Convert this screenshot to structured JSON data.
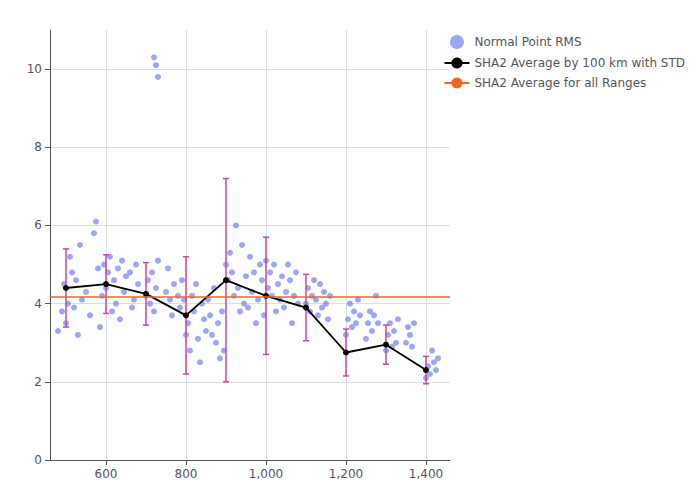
{
  "chart_data": {
    "type": "scatter",
    "legend": "right",
    "grid": true,
    "xlim": [
      460,
      1460
    ],
    "xticks": [
      600,
      800,
      1000,
      1200,
      1400
    ],
    "ylim": [
      0,
      11
    ],
    "yticks": [
      0,
      2,
      4,
      6,
      8,
      10
    ],
    "series": [
      {
        "name": "Normal Point RMS",
        "type": "scatter",
        "color": "#6677ee",
        "marker": "circle",
        "x": [
          480,
          490,
          495,
          500,
          505,
          510,
          515,
          520,
          525,
          530,
          535,
          540,
          550,
          560,
          570,
          575,
          580,
          585,
          590,
          595,
          600,
          605,
          610,
          615,
          620,
          625,
          630,
          635,
          640,
          645,
          650,
          660,
          665,
          670,
          675,
          680,
          700,
          705,
          710,
          715,
          720,
          725,
          730,
          750,
          755,
          760,
          765,
          770,
          780,
          785,
          790,
          795,
          800,
          805,
          810,
          815,
          820,
          825,
          830,
          835,
          840,
          845,
          850,
          855,
          860,
          865,
          870,
          875,
          880,
          885,
          890,
          895,
          900,
          905,
          910,
          915,
          920,
          925,
          930,
          935,
          940,
          945,
          950,
          955,
          960,
          965,
          970,
          975,
          980,
          985,
          990,
          995,
          1000,
          1005,
          1010,
          1015,
          1020,
          1025,
          1030,
          1035,
          1040,
          1045,
          1050,
          1055,
          1060,
          1065,
          1070,
          1075,
          1080,
          1100,
          1105,
          1110,
          1115,
          1120,
          1125,
          1130,
          1135,
          1140,
          1145,
          1150,
          1155,
          1160,
          1200,
          1205,
          1210,
          1215,
          1220,
          1225,
          1230,
          1235,
          1250,
          1255,
          1260,
          1265,
          1270,
          1275,
          1280,
          1300,
          1305,
          1310,
          1315,
          1320,
          1325,
          1330,
          1350,
          1355,
          1360,
          1365,
          1370,
          1400,
          1405,
          1410,
          1415,
          1420,
          1425,
          1430,
          720,
          725,
          730
        ],
        "values": [
          3.3,
          3.8,
          4.5,
          3.5,
          4.0,
          5.2,
          4.8,
          3.9,
          4.6,
          3.2,
          5.5,
          4.1,
          4.3,
          3.7,
          5.8,
          6.1,
          4.9,
          3.4,
          4.2,
          5.0,
          4.4,
          4.8,
          5.2,
          3.8,
          4.6,
          4.0,
          4.9,
          3.6,
          5.1,
          4.3,
          4.7,
          4.8,
          3.9,
          4.1,
          5.0,
          4.5,
          4.2,
          4.6,
          4.0,
          4.8,
          3.8,
          4.4,
          5.1,
          4.3,
          4.9,
          4.1,
          3.7,
          4.5,
          4.2,
          3.9,
          4.6,
          4.1,
          3.2,
          3.5,
          2.8,
          4.2,
          3.8,
          4.5,
          3.1,
          2.5,
          4.0,
          3.6,
          3.3,
          4.1,
          3.7,
          3.2,
          4.4,
          3.0,
          3.5,
          2.6,
          3.8,
          2.8,
          5.0,
          4.6,
          5.3,
          4.8,
          4.2,
          6.0,
          4.4,
          3.8,
          5.5,
          4.0,
          4.7,
          3.9,
          5.2,
          4.3,
          4.8,
          3.5,
          4.1,
          5.0,
          4.6,
          3.7,
          5.1,
          4.4,
          4.8,
          4.2,
          5.0,
          3.8,
          4.5,
          4.1,
          4.7,
          3.9,
          4.3,
          5.0,
          4.6,
          3.5,
          4.2,
          4.8,
          4.0,
          4.0,
          4.4,
          3.8,
          4.2,
          4.6,
          4.1,
          3.7,
          4.5,
          3.9,
          4.3,
          4.0,
          3.6,
          4.2,
          3.2,
          3.6,
          4.0,
          3.4,
          3.8,
          3.5,
          4.1,
          3.7,
          3.1,
          3.5,
          3.8,
          3.3,
          3.7,
          4.2,
          3.5,
          2.8,
          3.2,
          3.5,
          2.9,
          3.3,
          3.0,
          3.6,
          3.0,
          3.4,
          3.2,
          2.9,
          3.5,
          2.1,
          2.4,
          2.2,
          2.8,
          2.5,
          2.3,
          2.6,
          10.3,
          10.1,
          9.8
        ]
      },
      {
        "type": "errorbar",
        "color": "#cc44aa",
        "x": [
          500,
          600,
          700,
          800,
          900,
          1000,
          1100,
          1200,
          1300,
          1400
        ],
        "values": [
          4.4,
          4.5,
          4.25,
          3.7,
          4.6,
          4.2,
          3.9,
          2.75,
          2.95,
          2.3
        ],
        "errors": [
          1.0,
          0.75,
          0.8,
          1.5,
          2.6,
          1.5,
          0.85,
          0.6,
          0.5,
          0.35
        ]
      },
      {
        "name": "SHA2 Average by 100 km with STD",
        "type": "line",
        "color": "black",
        "marker": "circle",
        "x": [
          500,
          600,
          700,
          800,
          900,
          1000,
          1100,
          1200,
          1300,
          1400
        ],
        "values": [
          4.4,
          4.5,
          4.25,
          3.7,
          4.6,
          4.2,
          3.9,
          2.75,
          2.95,
          2.3
        ]
      },
      {
        "name": "SHA2 Average for all Ranges",
        "type": "hline",
        "color": "#ee6622",
        "values": [
          4.18
        ]
      }
    ]
  }
}
